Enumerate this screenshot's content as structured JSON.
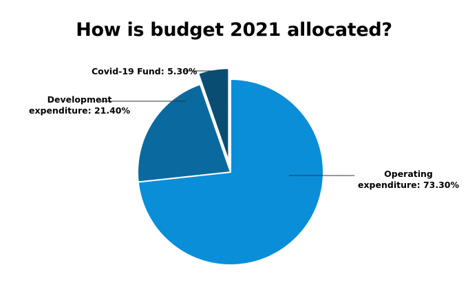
{
  "chart_data": {
    "type": "pie",
    "title": "How is budget 2021 allocated?",
    "slices": [
      {
        "label": "Operating expenditure",
        "value": 73.3,
        "display": "73.30%",
        "color": "#0a8ed8"
      },
      {
        "label": "Development expenditure",
        "value": 21.4,
        "display": "21.40%",
        "color": "#0a6aa0"
      },
      {
        "label": "Covid-19 Fund",
        "value": 5.3,
        "display": "5.30%",
        "color": "#0a4d72"
      }
    ],
    "labels_text": {
      "operating": [
        "Operating",
        "expenditure: 73.30%"
      ],
      "development": [
        "Development",
        "expenditure: 21.40%"
      ],
      "covid": [
        "Covid-19 Fund: 5.30%"
      ]
    },
    "legend": "none",
    "grid": false
  }
}
